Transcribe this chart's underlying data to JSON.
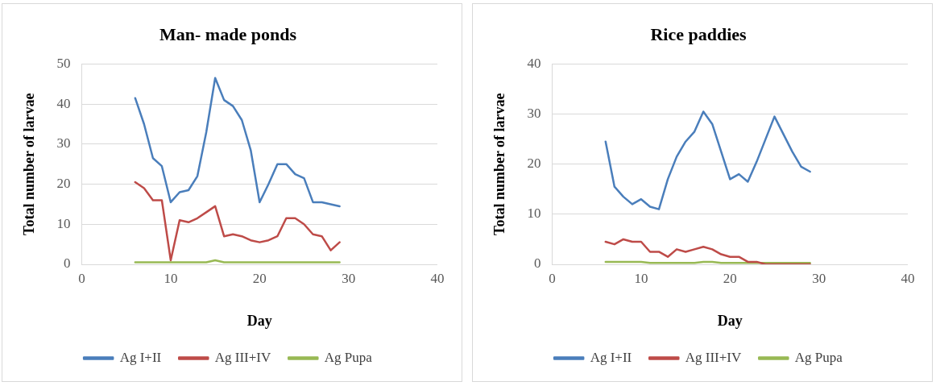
{
  "chart_data": [
    {
      "type": "line",
      "title": "Man- made ponds",
      "xlabel": "Day",
      "ylabel": "Total number of larvae",
      "x": [
        6,
        7,
        8,
        9,
        10,
        11,
        12,
        13,
        14,
        15,
        16,
        17,
        18,
        19,
        20,
        21,
        22,
        23,
        24,
        25,
        26,
        27,
        28,
        29
      ],
      "xlim": [
        0,
        40
      ],
      "xticks": [
        0,
        10,
        20,
        30,
        40
      ],
      "ylim": [
        0,
        50
      ],
      "yticks": [
        0,
        10,
        20,
        30,
        40,
        50
      ],
      "grid": "y",
      "legend": "bottom",
      "marker": "none",
      "line_style": "solid",
      "series": [
        {
          "name": "Ag I+II",
          "color": "#4a7ebb",
          "values": [
            41.5,
            35,
            26.5,
            24.5,
            15.5,
            18,
            18.5,
            22,
            33,
            46.5,
            41,
            39.5,
            36,
            28.5,
            15.5,
            20,
            25,
            25,
            22.5,
            21.5,
            15.5,
            15.5,
            15,
            14.5
          ]
        },
        {
          "name": "Ag III+IV",
          "color": "#be4b48",
          "values": [
            20.5,
            19,
            16,
            16,
            1,
            11,
            10.5,
            11.5,
            13,
            14.5,
            7,
            7.5,
            7,
            6,
            5.5,
            6,
            7,
            11.5,
            11.5,
            10,
            7.5,
            7,
            3.5,
            5.5
          ]
        },
        {
          "name": "Ag Pupa",
          "color": "#98b954",
          "values": [
            0.5,
            0.5,
            0.5,
            0.5,
            0.5,
            0.5,
            0.5,
            0.5,
            0.5,
            1,
            0.5,
            0.5,
            0.5,
            0.5,
            0.5,
            0.5,
            0.5,
            0.5,
            0.5,
            0.5,
            0.5,
            0.5,
            0.5,
            0.5
          ]
        }
      ]
    },
    {
      "type": "line",
      "title": "Rice paddies",
      "xlabel": "Day",
      "ylabel": "Total number of larvae",
      "x": [
        6,
        7,
        8,
        9,
        10,
        11,
        12,
        13,
        14,
        15,
        16,
        17,
        18,
        19,
        20,
        21,
        22,
        23,
        24,
        25,
        26,
        27,
        28,
        29
      ],
      "xlim": [
        0,
        40
      ],
      "xticks": [
        0,
        10,
        20,
        30,
        40
      ],
      "ylim": [
        0,
        40
      ],
      "yticks": [
        0,
        10,
        20,
        30,
        40
      ],
      "grid": "y",
      "legend": "bottom",
      "marker": "none",
      "line_style": "solid",
      "series": [
        {
          "name": "Ag I+II",
          "color": "#4a7ebb",
          "values": [
            24.5,
            15.5,
            13.5,
            12,
            13,
            11.5,
            11,
            17,
            21.5,
            24.5,
            26.5,
            30.5,
            28,
            22.5,
            17,
            18,
            16.5,
            20.5,
            25,
            29.5,
            26,
            22.5,
            19.5,
            18.5
          ]
        },
        {
          "name": "Ag III+IV",
          "color": "#be4b48",
          "values": [
            4.5,
            4,
            5,
            4.5,
            4.5,
            2.5,
            2.5,
            1.5,
            3,
            2.5,
            3,
            3.5,
            3,
            2,
            1.5,
            1.5,
            0.5,
            0.5,
            0,
            0,
            0,
            0,
            0,
            0
          ]
        },
        {
          "name": "Ag Pupa",
          "color": "#98b954",
          "values": [
            0.5,
            0.5,
            0.5,
            0.5,
            0.5,
            0.3,
            0.3,
            0.3,
            0.3,
            0.3,
            0.3,
            0.5,
            0.5,
            0.3,
            0.3,
            0.3,
            0.3,
            0.3,
            0.3,
            0.3,
            0.3,
            0.3,
            0.3,
            0.3
          ]
        }
      ]
    }
  ]
}
